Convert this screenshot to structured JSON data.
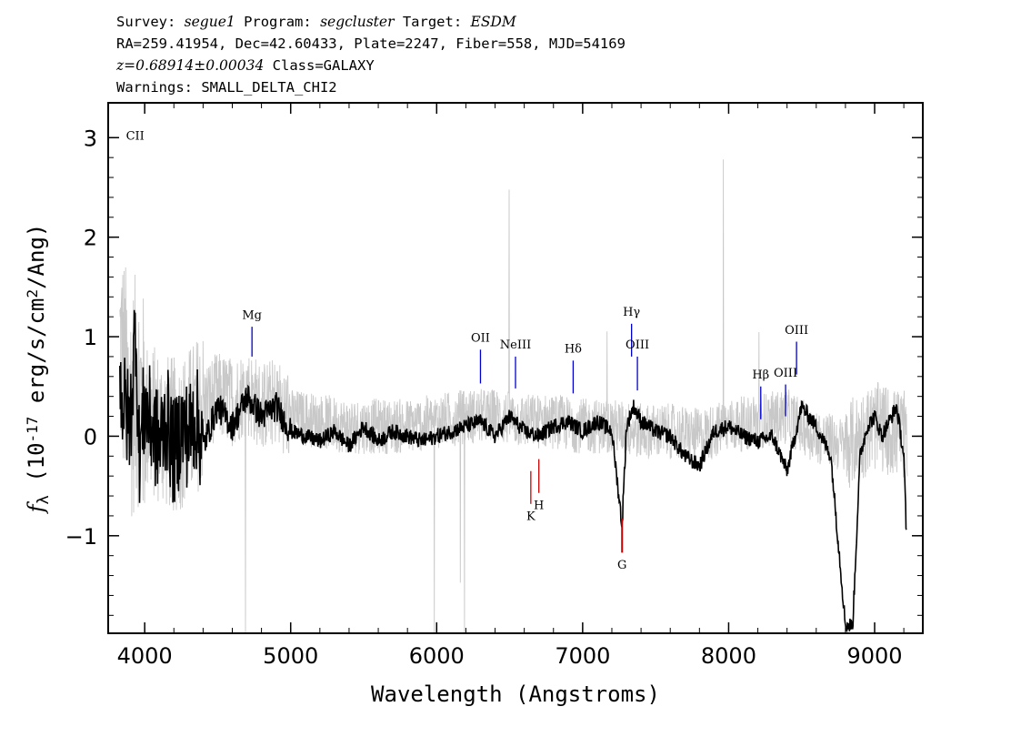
{
  "header": {
    "line1": {
      "survey_label": "Survey: ",
      "survey": "segue1",
      "program_label": " Program: ",
      "program": "segcluster",
      "target_label": " Target: ",
      "target": "ESDM"
    },
    "line2": "RA=259.41954, Dec=42.60433, Plate=2247, Fiber=558, MJD=54169",
    "line3": {
      "redshift": "z=0.68914±0.00034",
      "class": " Class=GALAXY"
    },
    "line4": "Warnings: SMALL_DELTA_CHI2"
  },
  "chart_data": {
    "type": "line",
    "xlabel": "Wavelength (Angstroms)",
    "ylabel": "f_λ (10^-17 erg/s/cm^2/Ang)",
    "xlim": [
      3750,
      9330
    ],
    "ylim": [
      -1.98,
      3.35
    ],
    "xticks": [
      "4000",
      "5000",
      "6000",
      "7000",
      "8000",
      "9000"
    ],
    "xtick_values": [
      4000,
      5000,
      6000,
      7000,
      8000,
      9000
    ],
    "yticks": [
      "3",
      "2",
      "1",
      "0",
      "−1"
    ],
    "ytick_values": [
      3,
      2,
      1,
      0,
      -1
    ],
    "colors": {
      "flux": "#000000",
      "error": "#c8c8c8",
      "emission": "#0000cc",
      "absorption": "#cc0000"
    },
    "series": [
      {
        "style": "noisy-gray",
        "x": [
          3830,
          3900,
          3950,
          4000,
          4100,
          4200,
          4300,
          4400,
          4500,
          4600,
          4700,
          4800,
          4900,
          5000,
          5200,
          5400,
          5600,
          5800,
          6000,
          6200,
          6400,
          6600,
          6800,
          7000,
          7200,
          7400,
          7600,
          7800,
          8000,
          8200,
          8400,
          8600,
          8800,
          9000,
          9220
        ],
        "y": [
          0.9,
          0.3,
          0.5,
          0.2,
          0.1,
          0.0,
          0.1,
          0.3,
          0.4,
          0.35,
          0.45,
          0.3,
          0.35,
          0.2,
          0.15,
          0.1,
          0.1,
          0.1,
          0.15,
          0.2,
          0.2,
          0.15,
          0.15,
          0.1,
          0.1,
          0.05,
          0.05,
          0.0,
          0.1,
          0.15,
          0.2,
          0.0,
          -0.1,
          0.1,
          0.0
        ]
      },
      {
        "style": "flux-black",
        "x": [
          3830,
          3860,
          3900,
          3940,
          3960,
          4000,
          4050,
          4100,
          4150,
          4200,
          4250,
          4300,
          4350,
          4400,
          4500,
          4600,
          4700,
          4800,
          4900,
          5000,
          5100,
          5200,
          5300,
          5400,
          5500,
          5600,
          5700,
          5800,
          5900,
          6000,
          6100,
          6200,
          6300,
          6400,
          6500,
          6600,
          6700,
          6800,
          6900,
          7000,
          7100,
          7200,
          7270,
          7300,
          7350,
          7400,
          7500,
          7600,
          7700,
          7800,
          7900,
          8000,
          8100,
          8200,
          8300,
          8400,
          8500,
          8600,
          8700,
          8800,
          8850,
          8900,
          8950,
          9000,
          9050,
          9100,
          9150,
          9200,
          9220
        ],
        "y": [
          0.5,
          0.3,
          0.1,
          1.2,
          -0.2,
          0.3,
          0.1,
          -0.1,
          0.2,
          -0.2,
          0.1,
          0.0,
          0.2,
          -0.1,
          0.3,
          0.1,
          0.4,
          0.2,
          0.3,
          0.05,
          0.0,
          -0.05,
          0.05,
          -0.1,
          0.1,
          -0.05,
          0.05,
          0.0,
          -0.05,
          0.0,
          0.05,
          0.1,
          0.15,
          0.0,
          0.2,
          0.05,
          0.0,
          0.1,
          0.15,
          0.05,
          0.15,
          0.05,
          -0.9,
          0.1,
          0.3,
          0.15,
          0.05,
          0.0,
          -0.2,
          -0.3,
          0.05,
          0.1,
          0.0,
          -0.05,
          0.0,
          -0.35,
          0.3,
          0.1,
          -0.2,
          -1.9,
          -1.9,
          -0.2,
          0.1,
          0.2,
          0.0,
          0.15,
          0.3,
          -0.2,
          -1.1
        ]
      }
    ],
    "lines": [
      {
        "label": "CII",
        "kind": "emission",
        "x": 3935,
        "y0": 2.9,
        "y1": 2.9,
        "label_y": 2.98
      },
      {
        "label": "Mg",
        "kind": "emission",
        "x": 4735,
        "y0": 0.8,
        "y1": 1.1,
        "label_y": 1.18
      },
      {
        "label": "OII",
        "kind": "emission",
        "x": 6300,
        "y0": 0.53,
        "y1": 0.87,
        "label_y": 0.95
      },
      {
        "label": "NeIII",
        "kind": "emission",
        "x": 6540,
        "y0": 0.48,
        "y1": 0.8,
        "label_y": 0.88
      },
      {
        "label": "Hδ",
        "kind": "emission",
        "x": 6935,
        "y0": 0.43,
        "y1": 0.76,
        "label_y": 0.84
      },
      {
        "label": "Hγ",
        "kind": "emission",
        "x": 7335,
        "y0": 0.8,
        "y1": 1.13,
        "label_y": 1.21
      },
      {
        "label": "OIII",
        "kind": "emission",
        "x": 7375,
        "y0": 0.46,
        "y1": 0.8,
        "label_y": 0.88
      },
      {
        "label": "Hβ",
        "kind": "emission",
        "x": 8220,
        "y0": 0.17,
        "y1": 0.5,
        "label_y": 0.58
      },
      {
        "label": "OIII",
        "kind": "emission",
        "x": 8390,
        "y0": 0.2,
        "y1": 0.52,
        "label_y": 0.6
      },
      {
        "label": "OIII",
        "kind": "emission",
        "x": 8465,
        "y0": 0.62,
        "y1": 0.95,
        "label_y": 1.03
      },
      {
        "label": "K",
        "kind": "absorption",
        "x": 6645,
        "y0": -0.35,
        "y1": -0.68,
        "label_y": -0.84
      },
      {
        "label": "H",
        "kind": "absorption",
        "x": 6700,
        "y0": -0.23,
        "y1": -0.57,
        "label_y": -0.73
      },
      {
        "label": "G",
        "kind": "absorption",
        "x": 7270,
        "y0": -0.83,
        "y1": -1.17,
        "label_y": -1.33
      }
    ]
  }
}
